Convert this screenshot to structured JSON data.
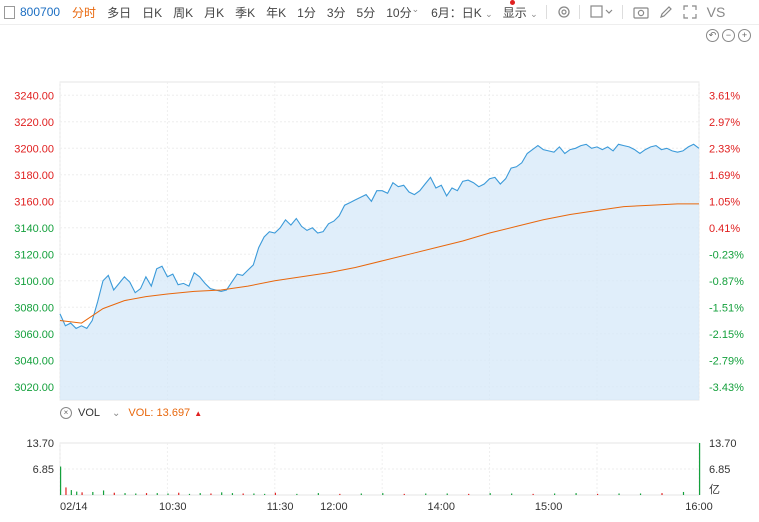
{
  "toolbar": {
    "code": "800700",
    "items": [
      "分时",
      "多日",
      "日K",
      "周K",
      "月K",
      "季K",
      "年K",
      "1分",
      "3分",
      "5分",
      "10分"
    ],
    "active_index": 0,
    "period_select": "6月：日K",
    "display_label": "显示",
    "vs_label": "VS"
  },
  "price_axis": [
    "3240.00",
    "3220.00",
    "3200.00",
    "3180.00",
    "3160.00",
    "3140.00",
    "3120.00",
    "3100.00",
    "3080.00",
    "3060.00",
    "3040.00",
    "3020.00"
  ],
  "pct_axis": [
    "3.61%",
    "2.97%",
    "2.33%",
    "1.69%",
    "1.05%",
    "0.41%",
    "-0.23%",
    "-0.87%",
    "-1.51%",
    "-2.15%",
    "-2.79%",
    "-3.43%"
  ],
  "vol": {
    "label": "VOL",
    "value_label": "VOL: 13.697",
    "axis_left": [
      "13.70",
      "6.85"
    ],
    "axis_right": [
      "13.70",
      "6.85",
      "亿"
    ]
  },
  "time_axis": [
    "02/14",
    "10:30",
    "11:30",
    "12:00",
    "14:00",
    "15:00",
    "16:00"
  ],
  "colors": {
    "price_line": "#3b9ad9",
    "avg_line": "#e8670c",
    "up": "#e02020",
    "down": "#14a03c",
    "code": "#1b6ec2",
    "active_tab": "#e8670c"
  },
  "chart_data": {
    "type": "line",
    "series": [],
    "x": [
      "02/14",
      "10:30",
      "11:30",
      "12:00",
      "14:00",
      "15:00",
      "16:00"
    ],
    "ylim": [
      3010,
      3250
    ],
    "price": [
      [
        0,
        3075
      ],
      [
        1,
        3066
      ],
      [
        2,
        3068
      ],
      [
        3,
        3064
      ],
      [
        4,
        3066
      ],
      [
        5,
        3064
      ],
      [
        6,
        3070
      ],
      [
        7,
        3084
      ],
      [
        8,
        3100
      ],
      [
        9,
        3104
      ],
      [
        10,
        3093
      ],
      [
        11,
        3098
      ],
      [
        12,
        3103
      ],
      [
        13,
        3099
      ],
      [
        14,
        3091
      ],
      [
        15,
        3094
      ],
      [
        16,
        3103
      ],
      [
        17,
        3096
      ],
      [
        18,
        3109
      ],
      [
        19,
        3111
      ],
      [
        20,
        3103
      ],
      [
        21,
        3105
      ],
      [
        22,
        3097
      ],
      [
        23,
        3098
      ],
      [
        24,
        3096
      ],
      [
        25,
        3106
      ],
      [
        26,
        3103
      ],
      [
        27,
        3098
      ],
      [
        28,
        3094
      ],
      [
        29,
        3093
      ],
      [
        30,
        3092
      ],
      [
        31,
        3093
      ],
      [
        32,
        3099
      ],
      [
        33,
        3105
      ],
      [
        34,
        3104
      ],
      [
        35,
        3108
      ],
      [
        36,
        3112
      ],
      [
        37,
        3125
      ],
      [
        38,
        3133
      ],
      [
        39,
        3137
      ],
      [
        40,
        3136
      ],
      [
        41,
        3140
      ],
      [
        42,
        3146
      ],
      [
        43,
        3142
      ],
      [
        44,
        3147
      ],
      [
        45,
        3141
      ],
      [
        46,
        3138
      ],
      [
        47,
        3140
      ],
      [
        48,
        3136
      ],
      [
        49,
        3137
      ],
      [
        50,
        3143
      ],
      [
        51,
        3145
      ],
      [
        52,
        3149
      ],
      [
        53,
        3157
      ],
      [
        54,
        3159
      ],
      [
        55,
        3161
      ],
      [
        56,
        3163
      ],
      [
        57,
        3165
      ],
      [
        58,
        3160
      ],
      [
        59,
        3168
      ],
      [
        60,
        3168
      ],
      [
        61,
        3166
      ],
      [
        62,
        3174
      ],
      [
        63,
        3171
      ],
      [
        64,
        3172
      ],
      [
        65,
        3167
      ],
      [
        66,
        3165
      ],
      [
        67,
        3168
      ],
      [
        68,
        3173
      ],
      [
        69,
        3178
      ],
      [
        70,
        3170
      ],
      [
        71,
        3172
      ],
      [
        72,
        3164
      ],
      [
        73,
        3170
      ],
      [
        74,
        3168
      ],
      [
        75,
        3175
      ],
      [
        76,
        3176
      ],
      [
        77,
        3174
      ],
      [
        78,
        3171
      ],
      [
        79,
        3173
      ],
      [
        80,
        3177
      ],
      [
        81,
        3178
      ],
      [
        82,
        3173
      ],
      [
        83,
        3177
      ],
      [
        84,
        3185
      ],
      [
        85,
        3186
      ],
      [
        86,
        3189
      ],
      [
        87,
        3196
      ],
      [
        88,
        3199
      ],
      [
        89,
        3202
      ],
      [
        90,
        3199
      ],
      [
        91,
        3198
      ],
      [
        92,
        3197
      ],
      [
        93,
        3201
      ],
      [
        94,
        3196
      ],
      [
        95,
        3199
      ],
      [
        96,
        3200
      ],
      [
        97,
        3202
      ],
      [
        98,
        3203
      ],
      [
        99,
        3200
      ],
      [
        100,
        3201
      ],
      [
        101,
        3199
      ],
      [
        102,
        3201
      ],
      [
        103,
        3198
      ],
      [
        104,
        3203
      ],
      [
        105,
        3202
      ],
      [
        106,
        3201
      ],
      [
        107,
        3199
      ],
      [
        108,
        3196
      ],
      [
        109,
        3199
      ],
      [
        110,
        3201
      ],
      [
        111,
        3202
      ],
      [
        112,
        3199
      ],
      [
        113,
        3200
      ],
      [
        114,
        3198
      ],
      [
        115,
        3197
      ],
      [
        116,
        3198
      ],
      [
        117,
        3201
      ],
      [
        118,
        3203
      ],
      [
        119,
        3200
      ]
    ],
    "avg": [
      [
        0,
        3070
      ],
      [
        4,
        3068
      ],
      [
        8,
        3079
      ],
      [
        12,
        3085
      ],
      [
        16,
        3088
      ],
      [
        20,
        3090
      ],
      [
        25,
        3092
      ],
      [
        30,
        3093
      ],
      [
        35,
        3096
      ],
      [
        40,
        3100
      ],
      [
        45,
        3103
      ],
      [
        50,
        3106
      ],
      [
        55,
        3110
      ],
      [
        60,
        3115
      ],
      [
        65,
        3120
      ],
      [
        70,
        3125
      ],
      [
        75,
        3130
      ],
      [
        80,
        3136
      ],
      [
        85,
        3141
      ],
      [
        90,
        3146
      ],
      [
        95,
        3150
      ],
      [
        100,
        3153
      ],
      [
        105,
        3156
      ],
      [
        110,
        3157
      ],
      [
        115,
        3158
      ],
      [
        119,
        3158
      ]
    ],
    "volume": [
      [
        0,
        7.5
      ],
      [
        1,
        2.0
      ],
      [
        2,
        1.3
      ],
      [
        3,
        0.9
      ],
      [
        4,
        0.7
      ],
      [
        6,
        0.8
      ],
      [
        8,
        1.2
      ],
      [
        10,
        0.6
      ],
      [
        12,
        0.5
      ],
      [
        14,
        0.4
      ],
      [
        16,
        0.5
      ],
      [
        18,
        0.5
      ],
      [
        20,
        0.4
      ],
      [
        22,
        0.6
      ],
      [
        24,
        0.3
      ],
      [
        26,
        0.5
      ],
      [
        28,
        0.4
      ],
      [
        30,
        0.7
      ],
      [
        32,
        0.5
      ],
      [
        34,
        0.4
      ],
      [
        36,
        0.4
      ],
      [
        38,
        0.3
      ],
      [
        40,
        0.6
      ],
      [
        44,
        0.3
      ],
      [
        48,
        0.5
      ],
      [
        52,
        0.3
      ],
      [
        56,
        0.4
      ],
      [
        60,
        0.5
      ],
      [
        64,
        0.3
      ],
      [
        68,
        0.4
      ],
      [
        72,
        0.4
      ],
      [
        76,
        0.3
      ],
      [
        80,
        0.5
      ],
      [
        84,
        0.4
      ],
      [
        88,
        0.3
      ],
      [
        92,
        0.4
      ],
      [
        96,
        0.5
      ],
      [
        100,
        0.3
      ],
      [
        104,
        0.4
      ],
      [
        108,
        0.4
      ],
      [
        112,
        0.5
      ],
      [
        116,
        0.8
      ],
      [
        119,
        13.7
      ]
    ]
  }
}
